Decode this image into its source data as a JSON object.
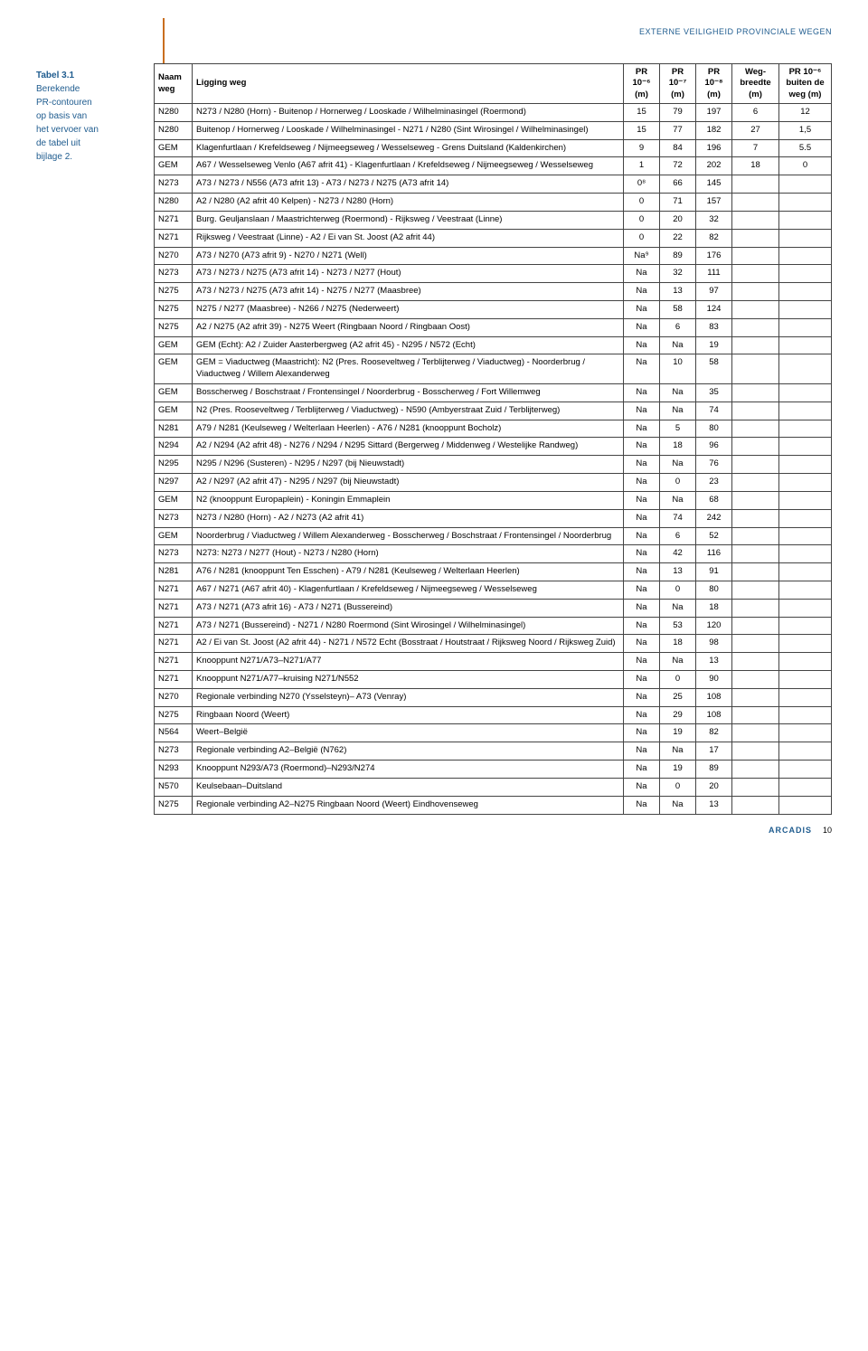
{
  "header": {
    "doc_title": "EXTERNE VEILIGHEID PROVINCIALE WEGEN"
  },
  "sidebar": {
    "title": "Tabel 3.1",
    "lines": [
      "Berekende",
      "PR-contouren",
      "op basis van",
      "het vervoer van",
      "de tabel uit",
      "bijlage 2."
    ]
  },
  "columns": {
    "naam": "Naam weg",
    "ligging": "Ligging weg",
    "pr6": "PR 10⁻⁶ (m)",
    "pr7": "PR 10⁻⁷ (m)",
    "pr8": "PR 10⁻⁸ (m)",
    "wegb": "Weg-breedte (m)",
    "buiten": "PR 10⁻⁶ buiten de weg (m)"
  },
  "colors": {
    "accent": "#1f5c8f",
    "rule": "#c96e1f",
    "border": "#444444",
    "text": "#000000",
    "bg": "#ffffff"
  },
  "footer": {
    "brand": "ARCADIS",
    "page": "10"
  },
  "rows": [
    {
      "naam": "N280",
      "lig": "N273 / N280 (Horn) - Buitenop / Hornerweg / Looskade / Wilhelminasingel (Roermond)",
      "p6": "15",
      "p7": "79",
      "p8": "197",
      "wb": "6",
      "bu": "12"
    },
    {
      "naam": "N280",
      "lig": "Buitenop / Hornerweg / Looskade / Wilhelminasingel - N271 / N280 (Sint Wirosingel / Wilhelminasingel)",
      "p6": "15",
      "p7": "77",
      "p8": "182",
      "wb": "27",
      "bu": "1,5"
    },
    {
      "naam": "GEM",
      "lig": "Klagenfurtlaan / Krefeldseweg / Nijmeegseweg / Wesselseweg - Grens Duitsland (Kaldenkirchen)",
      "p6": "9",
      "p7": "84",
      "p8": "196",
      "wb": "7",
      "bu": "5.5"
    },
    {
      "naam": "GEM",
      "lig": "A67 / Wesselseweg Venlo (A67 afrit 41) - Klagenfurtlaan / Krefeldseweg / Nijmeegseweg / Wesselseweg",
      "p6": "1",
      "p7": "72",
      "p8": "202",
      "wb": "18",
      "bu": "0"
    },
    {
      "naam": "N273",
      "lig": "A73 / N273 / N556 (A73 afrit 13) - A73 / N273 / N275 (A73 afrit 14)",
      "p6": "0⁸",
      "p7": "66",
      "p8": "145",
      "wb": "",
      "bu": ""
    },
    {
      "naam": "N280",
      "lig": "A2 / N280 (A2 afrit 40 Kelpen) - N273 / N280 (Horn)",
      "p6": "0",
      "p7": "71",
      "p8": "157",
      "wb": "",
      "bu": ""
    },
    {
      "naam": "N271",
      "lig": "Burg. Geuljanslaan / Maastrichterweg (Roermond) - Rijksweg / Veestraat (Linne)",
      "p6": "0",
      "p7": "20",
      "p8": "32",
      "wb": "",
      "bu": ""
    },
    {
      "naam": "N271",
      "lig": "Rijksweg / Veestraat (Linne) - A2 / Ei van St. Joost (A2 afrit 44)",
      "p6": "0",
      "p7": "22",
      "p8": "82",
      "wb": "",
      "bu": ""
    },
    {
      "naam": "N270",
      "lig": "A73 / N270 (A73 afrit 9) - N270 / N271 (Well)",
      "p6": "Na⁹",
      "p7": "89",
      "p8": "176",
      "wb": "",
      "bu": ""
    },
    {
      "naam": "N273",
      "lig": "A73 / N273 / N275 (A73 afrit 14) - N273 / N277 (Hout)",
      "p6": "Na",
      "p7": "32",
      "p8": "111",
      "wb": "",
      "bu": ""
    },
    {
      "naam": "N275",
      "lig": "A73 / N273 / N275 (A73 afrit 14) - N275 / N277 (Maasbree)",
      "p6": "Na",
      "p7": "13",
      "p8": "97",
      "wb": "",
      "bu": ""
    },
    {
      "naam": "N275",
      "lig": "N275 / N277 (Maasbree) - N266 / N275 (Nederweert)",
      "p6": "Na",
      "p7": "58",
      "p8": "124",
      "wb": "",
      "bu": ""
    },
    {
      "naam": "N275",
      "lig": "A2 / N275 (A2 afrit 39) - N275 Weert (Ringbaan Noord / Ringbaan Oost)",
      "p6": "Na",
      "p7": "6",
      "p8": "83",
      "wb": "",
      "bu": ""
    },
    {
      "naam": "GEM",
      "lig": "GEM (Echt): A2 / Zuider Aasterbergweg (A2 afrit 45) - N295 / N572 (Echt)",
      "p6": "Na",
      "p7": "Na",
      "p8": "19",
      "wb": "",
      "bu": ""
    },
    {
      "naam": "GEM",
      "lig": "GEM = Viaductweg (Maastricht): N2 (Pres. Rooseveltweg / Terblijterweg / Viaductweg) - Noorderbrug / Viaductweg / Willem Alexanderweg",
      "p6": "Na",
      "p7": "10",
      "p8": "58",
      "wb": "",
      "bu": ""
    },
    {
      "naam": "GEM",
      "lig": "Bosscherweg / Boschstraat / Frontensingel / Noorderbrug - Bosscherweg / Fort Willemweg",
      "p6": "Na",
      "p7": "Na",
      "p8": "35",
      "wb": "",
      "bu": ""
    },
    {
      "naam": "GEM",
      "lig": "N2 (Pres. Rooseveltweg / Terblijterweg / Viaductweg) - N590 (Ambyerstraat Zuid / Terblijterweg)",
      "p6": "Na",
      "p7": "Na",
      "p8": "74",
      "wb": "",
      "bu": ""
    },
    {
      "naam": "N281",
      "lig": "A79 / N281 (Keulseweg / Welterlaan Heerlen) - A76 / N281 (knooppunt Bocholz)",
      "p6": "Na",
      "p7": "5",
      "p8": "80",
      "wb": "",
      "bu": ""
    },
    {
      "naam": "N294",
      "lig": "A2 / N294 (A2 afrit 48) - N276 / N294 / N295 Sittard (Bergerweg / Middenweg / Westelijke Randweg)",
      "p6": "Na",
      "p7": "18",
      "p8": "96",
      "wb": "",
      "bu": ""
    },
    {
      "naam": "N295",
      "lig": "N295 / N296 (Susteren) - N295 / N297 (bij Nieuwstadt)",
      "p6": "Na",
      "p7": "Na",
      "p8": "76",
      "wb": "",
      "bu": ""
    },
    {
      "naam": "N297",
      "lig": "A2 / N297 (A2 afrit 47) - N295 / N297 (bij Nieuwstadt)",
      "p6": "Na",
      "p7": "0",
      "p8": "23",
      "wb": "",
      "bu": ""
    },
    {
      "naam": "GEM",
      "lig": "N2 (knooppunt Europaplein) - Koningin Emmaplein",
      "p6": "Na",
      "p7": "Na",
      "p8": "68",
      "wb": "",
      "bu": ""
    },
    {
      "naam": "N273",
      "lig": "N273 / N280 (Horn) - A2 / N273 (A2 afrit 41)",
      "p6": "Na",
      "p7": "74",
      "p8": "242",
      "wb": "",
      "bu": ""
    },
    {
      "naam": "GEM",
      "lig": "Noorderbrug / Viaductweg / Willem Alexanderweg - Bosscherweg / Boschstraat / Frontensingel / Noorderbrug",
      "p6": "Na",
      "p7": "6",
      "p8": "52",
      "wb": "",
      "bu": ""
    },
    {
      "naam": "N273",
      "lig": "N273: N273 / N277 (Hout) - N273 / N280 (Horn)",
      "p6": "Na",
      "p7": "42",
      "p8": "116",
      "wb": "",
      "bu": ""
    },
    {
      "naam": "N281",
      "lig": "A76 / N281 (knooppunt Ten Esschen) - A79 / N281 (Keulseweg / Welterlaan Heerlen)",
      "p6": "Na",
      "p7": "13",
      "p8": "91",
      "wb": "",
      "bu": ""
    },
    {
      "naam": "N271",
      "lig": "A67 / N271 (A67 afrit 40) - Klagenfurtlaan / Krefeldseweg / Nijmeegseweg / Wesselseweg",
      "p6": "Na",
      "p7": "0",
      "p8": "80",
      "wb": "",
      "bu": ""
    },
    {
      "naam": "N271",
      "lig": "A73 / N271 (A73 afrit 16) - A73 / N271 (Bussereind)",
      "p6": "Na",
      "p7": "Na",
      "p8": "18",
      "wb": "",
      "bu": ""
    },
    {
      "naam": "N271",
      "lig": "A73 / N271 (Bussereind) - N271 / N280 Roermond (Sint Wirosingel / Wilhelminasingel)",
      "p6": "Na",
      "p7": "53",
      "p8": "120",
      "wb": "",
      "bu": ""
    },
    {
      "naam": "N271",
      "lig": "A2 / Ei van St. Joost (A2 afrit 44) - N271 / N572 Echt (Bosstraat / Houtstraat / Rijksweg Noord / Rijksweg Zuid)",
      "p6": "Na",
      "p7": "18",
      "p8": "98",
      "wb": "",
      "bu": ""
    },
    {
      "naam": "N271",
      "lig": "Knooppunt N271/A73–N271/A77",
      "p6": "Na",
      "p7": "Na",
      "p8": "13",
      "wb": "",
      "bu": ""
    },
    {
      "naam": "N271",
      "lig": "Knooppunt N271/A77–kruising N271/N552",
      "p6": "Na",
      "p7": "0",
      "p8": "90",
      "wb": "",
      "bu": ""
    },
    {
      "naam": "N270",
      "lig": "Regionale verbinding N270 (Ysselsteyn)– A73 (Venray)",
      "p6": "Na",
      "p7": "25",
      "p8": "108",
      "wb": "",
      "bu": ""
    },
    {
      "naam": "N275",
      "lig": "Ringbaan Noord (Weert)",
      "p6": "Na",
      "p7": "29",
      "p8": "108",
      "wb": "",
      "bu": ""
    },
    {
      "naam": "N564",
      "lig": "Weert–België",
      "p6": "Na",
      "p7": "19",
      "p8": "82",
      "wb": "",
      "bu": ""
    },
    {
      "naam": "N273",
      "lig": "Regionale verbinding A2–België (N762)",
      "p6": "Na",
      "p7": "Na",
      "p8": "17",
      "wb": "",
      "bu": ""
    },
    {
      "naam": "N293",
      "lig": "Knooppunt N293/A73 (Roermond)–N293/N274",
      "p6": "Na",
      "p7": "19",
      "p8": "89",
      "wb": "",
      "bu": ""
    },
    {
      "naam": "N570",
      "lig": "Keulsebaan–Duitsland",
      "p6": "Na",
      "p7": "0",
      "p8": "20",
      "wb": "",
      "bu": ""
    },
    {
      "naam": "N275",
      "lig": "Regionale verbinding A2–N275 Ringbaan Noord (Weert) Eindhovenseweg",
      "p6": "Na",
      "p7": "Na",
      "p8": "13",
      "wb": "",
      "bu": ""
    }
  ]
}
